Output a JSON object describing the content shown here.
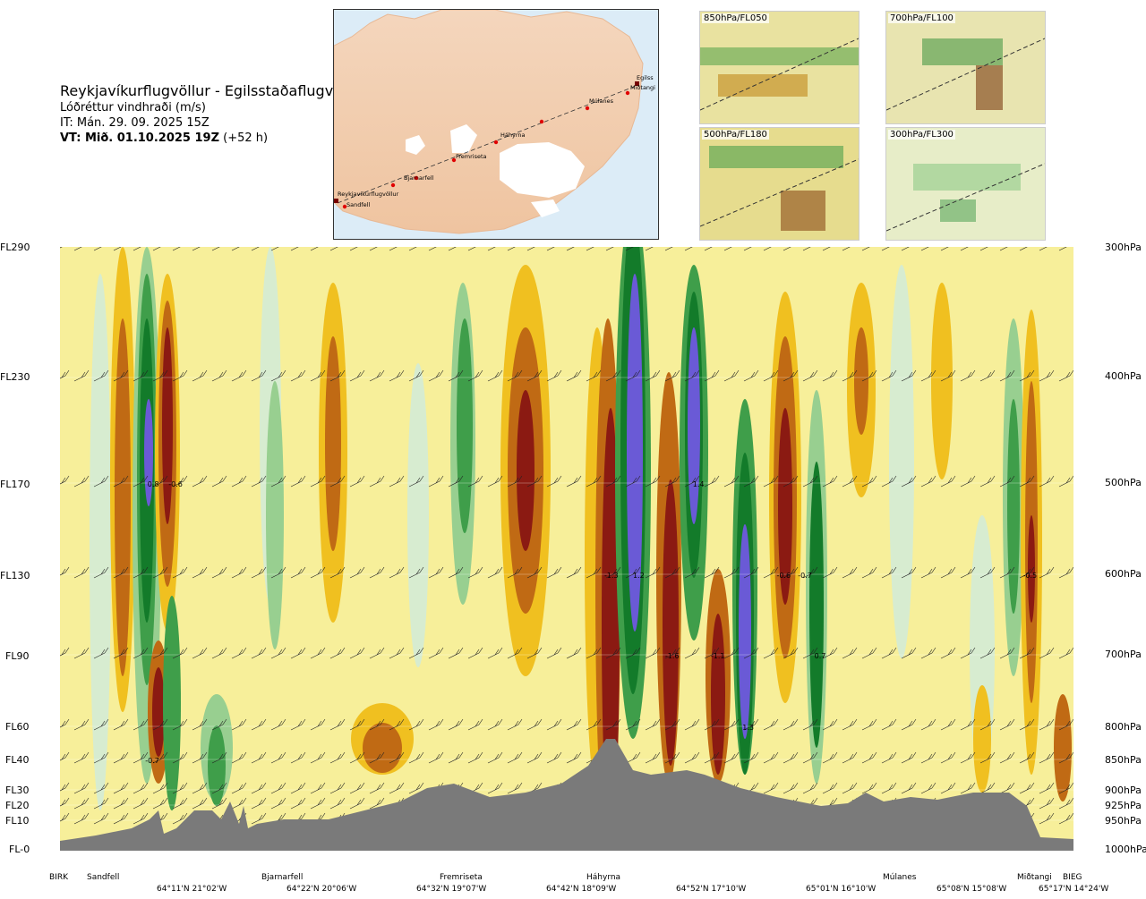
{
  "header": {
    "route": "Reykjavíkurflugvöllur - Egilsstaðaflugvöllur",
    "variable": "Lóðréttur vindhraði (m/s)",
    "it": "IT: Mán. 29. 09. 2025 15Z",
    "vt_bold": "VT: Mið. 01.10.2025 19Z",
    "vt_suffix": " (+52 h)"
  },
  "map": {
    "points": [
      "Reykjavíkurflugvöllur",
      "Sandfell",
      "Bjarnarfell",
      "Fremriseta",
      "Háhyrna",
      "Múlanes",
      "Miðtangi",
      "Egilss"
    ]
  },
  "thumbnails": [
    {
      "label": "850hPa/FL050"
    },
    {
      "label": "700hPa/FL100"
    },
    {
      "label": "500hPa/FL180"
    },
    {
      "label": "300hPa/FL300"
    }
  ],
  "chart_data": {
    "type": "heatmap",
    "title": "Lóðréttur vindhraði (m/s)",
    "y_left_labels": [
      "FL290",
      "FL230",
      "FL170",
      "FL130",
      "FL90",
      "FL60",
      "FL40",
      "FL30",
      "FL20",
      "FL10",
      "FL-0"
    ],
    "y_right_labels": [
      "300hPa",
      "400hPa",
      "500hPa",
      "600hPa",
      "700hPa",
      "800hPa",
      "850hPa",
      "900hPa",
      "925hPa",
      "950hPa",
      "1000hPa"
    ],
    "locations": [
      "BIRK",
      "Sandfell",
      "Bjarnarfell",
      "Fremriseta",
      "Háhyrna",
      "Múlanes",
      "Miðtangi",
      "BIEG"
    ],
    "coordinates": [
      "64°11'N 21°02'W",
      "64°22'N 20°06'W",
      "64°32'N 19°07'W",
      "64°42'N 18°09'W",
      "64°52'N 17°10'W",
      "65°01'N 16°10'W",
      "65°08'N 15°08'W",
      "65°17'N 14°24'W"
    ],
    "value_labels": [
      {
        "text": "0.8",
        "x_frac": 0.092,
        "level": "FL170"
      },
      {
        "text": "-0.6",
        "x_frac": 0.114,
        "level": "FL170"
      },
      {
        "text": "-1.3",
        "x_frac": 0.544,
        "level": "FL130"
      },
      {
        "text": "1.2",
        "x_frac": 0.571,
        "level": "FL130"
      },
      {
        "text": "1.4",
        "x_frac": 0.63,
        "level": "FL170"
      },
      {
        "text": "-1.6",
        "x_frac": 0.604,
        "level": "FL90"
      },
      {
        "text": "-1.1",
        "x_frac": 0.649,
        "level": "FL90"
      },
      {
        "text": "1.3",
        "x_frac": 0.679,
        "level": "FL60"
      },
      {
        "text": "-0.6",
        "x_frac": 0.714,
        "level": "FL130"
      },
      {
        "text": "-0.7",
        "x_frac": 0.735,
        "level": "FL130"
      },
      {
        "text": "0.7",
        "x_frac": 0.75,
        "level": "FL90"
      },
      {
        "text": "-0.5",
        "x_frac": 0.957,
        "level": "FL130"
      },
      {
        "text": "-0.7",
        "x_frac": 0.091,
        "level": "FL40"
      }
    ],
    "colors": {
      "down_strong": "#8b1a12",
      "down_mid": "#c06a14",
      "down_weak": "#f0c020",
      "down_faint": "#f7ef9a",
      "up_faint": "#d7ecd0",
      "up_weak": "#98cf90",
      "up_mid": "#3f9e4a",
      "up_strong": "#137b2a",
      "up_very_strong": "#6a5ad6",
      "terrain": "#7a7a7a"
    }
  }
}
